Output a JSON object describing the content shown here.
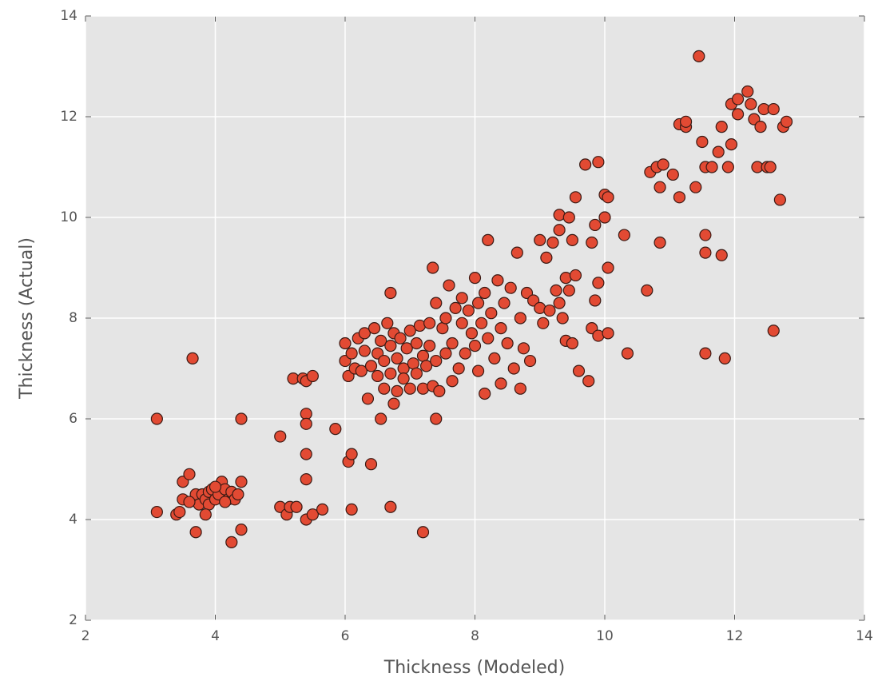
{
  "chart_data": {
    "type": "scatter",
    "xlabel": "Thickness (Modeled)",
    "ylabel": "Thickness (Actual)",
    "xlim": [
      2,
      14
    ],
    "ylim": [
      2,
      14
    ],
    "xticks": [
      2,
      4,
      6,
      8,
      10,
      12,
      14
    ],
    "yticks": [
      2,
      4,
      6,
      8,
      10,
      12,
      14
    ],
    "grid": true,
    "color": "#e24a33",
    "x": [
      3.1,
      3.1,
      3.65,
      3.4,
      3.45,
      3.5,
      3.5,
      3.6,
      3.7,
      3.75,
      3.8,
      3.85,
      3.9,
      3.9,
      3.95,
      4.0,
      4.05,
      4.1,
      4.15,
      4.2,
      4.25,
      4.3,
      4.35,
      4.4,
      3.7,
      3.85,
      4.25,
      4.4,
      4.4,
      3.6,
      4.0,
      4.15,
      5.0,
      5.0,
      5.1,
      5.15,
      5.25,
      5.2,
      5.35,
      5.4,
      5.5,
      5.4,
      5.4,
      5.4,
      5.4,
      5.4,
      5.5,
      5.65,
      5.85,
      6.05,
      6.1,
      6.1,
      6.4,
      6.7,
      7.2,
      7.4,
      6.55,
      6.7,
      6.0,
      6.0,
      6.05,
      6.1,
      6.15,
      6.2,
      6.25,
      6.3,
      6.3,
      6.35,
      6.4,
      6.45,
      6.5,
      6.5,
      6.55,
      6.6,
      6.6,
      6.65,
      6.7,
      6.7,
      6.75,
      6.75,
      6.8,
      6.8,
      6.85,
      6.9,
      6.9,
      6.95,
      7.0,
      7.0,
      7.05,
      7.1,
      7.1,
      7.15,
      7.2,
      7.2,
      7.25,
      7.3,
      7.3,
      7.35,
      7.35,
      7.4,
      7.4,
      7.45,
      7.5,
      7.55,
      7.55,
      7.6,
      7.65,
      7.65,
      7.7,
      7.75,
      7.8,
      7.8,
      7.85,
      7.9,
      7.95,
      8.0,
      8.0,
      8.05,
      8.05,
      8.1,
      8.15,
      8.15,
      8.2,
      8.2,
      8.25,
      8.3,
      8.35,
      8.4,
      8.4,
      8.45,
      8.5,
      8.55,
      8.6,
      8.65,
      8.7,
      8.7,
      8.75,
      8.8,
      8.85,
      8.9,
      9.0,
      9.0,
      9.05,
      9.1,
      9.15,
      9.2,
      9.25,
      9.3,
      9.3,
      9.3,
      9.35,
      9.4,
      9.4,
      9.45,
      9.45,
      9.5,
      9.5,
      9.55,
      9.55,
      9.6,
      9.7,
      9.75,
      9.8,
      9.8,
      9.85,
      9.85,
      9.9,
      9.9,
      9.9,
      10.0,
      10.0,
      10.05,
      10.05,
      10.05,
      10.3,
      10.35,
      10.65,
      10.7,
      10.8,
      10.85,
      10.85,
      10.9,
      11.05,
      11.15,
      11.15,
      11.25,
      11.25,
      11.4,
      11.45,
      11.5,
      11.55,
      11.55,
      11.55,
      11.55,
      11.65,
      11.75,
      11.8,
      11.8,
      11.85,
      11.9,
      11.95,
      11.95,
      12.05,
      12.05,
      12.2,
      12.25,
      12.3,
      12.35,
      12.4,
      12.45,
      12.5,
      12.55,
      12.6,
      12.6,
      12.7,
      12.75,
      12.8
    ],
    "values": [
      6.0,
      4.15,
      7.2,
      4.1,
      4.15,
      4.4,
      4.75,
      4.9,
      4.5,
      4.3,
      4.5,
      4.4,
      4.3,
      4.55,
      4.6,
      4.4,
      4.5,
      4.75,
      4.6,
      4.4,
      4.55,
      4.4,
      4.5,
      4.75,
      3.75,
      4.1,
      3.55,
      3.8,
      6.0,
      4.35,
      4.65,
      4.35,
      5.65,
      4.25,
      4.1,
      4.25,
      4.25,
      6.8,
      6.8,
      6.75,
      6.85,
      6.1,
      5.9,
      5.3,
      4.8,
      4.0,
      4.1,
      4.2,
      5.8,
      5.15,
      5.3,
      4.2,
      5.1,
      4.25,
      3.75,
      6.0,
      6.0,
      8.5,
      7.5,
      7.15,
      6.85,
      7.3,
      7.0,
      7.6,
      6.95,
      7.7,
      7.35,
      6.4,
      7.05,
      7.8,
      7.3,
      6.85,
      7.55,
      7.15,
      6.6,
      7.9,
      7.45,
      6.9,
      7.7,
      6.3,
      7.2,
      6.55,
      7.6,
      7.0,
      6.8,
      7.4,
      7.75,
      6.6,
      7.1,
      7.5,
      6.9,
      7.85,
      7.25,
      6.6,
      7.05,
      7.9,
      7.45,
      9.0,
      6.65,
      8.3,
      7.15,
      6.55,
      7.8,
      7.3,
      8.0,
      8.65,
      7.5,
      6.75,
      8.2,
      7.0,
      7.9,
      8.4,
      7.3,
      8.15,
      7.7,
      8.8,
      7.45,
      8.3,
      6.95,
      7.9,
      8.5,
      6.5,
      9.55,
      7.6,
      8.1,
      7.2,
      8.75,
      7.8,
      6.7,
      8.3,
      7.5,
      8.6,
      7.0,
      9.3,
      8.0,
      6.6,
      7.4,
      8.5,
      7.15,
      8.35,
      9.55,
      8.2,
      7.9,
      9.2,
      8.15,
      9.5,
      8.55,
      9.75,
      8.3,
      10.05,
      8.0,
      8.8,
      7.55,
      10.0,
      8.55,
      9.55,
      7.5,
      10.4,
      8.85,
      6.95,
      11.05,
      6.75,
      9.5,
      7.8,
      9.85,
      8.35,
      11.1,
      7.65,
      8.7,
      10.45,
      10.0,
      10.4,
      9.0,
      7.7,
      9.65,
      7.3,
      8.55,
      10.9,
      11.0,
      10.6,
      9.5,
      11.05,
      10.85,
      10.4,
      11.85,
      11.8,
      11.9,
      10.6,
      13.2,
      11.5,
      11.0,
      9.65,
      9.3,
      7.3,
      11.0,
      11.3,
      11.8,
      9.25,
      7.2,
      11.0,
      11.45,
      12.25,
      12.05,
      12.35,
      12.5,
      12.25,
      11.95,
      11.0,
      11.8,
      12.15,
      11.0,
      11.0,
      12.15,
      7.75,
      10.35,
      11.8,
      11.9
    ]
  }
}
